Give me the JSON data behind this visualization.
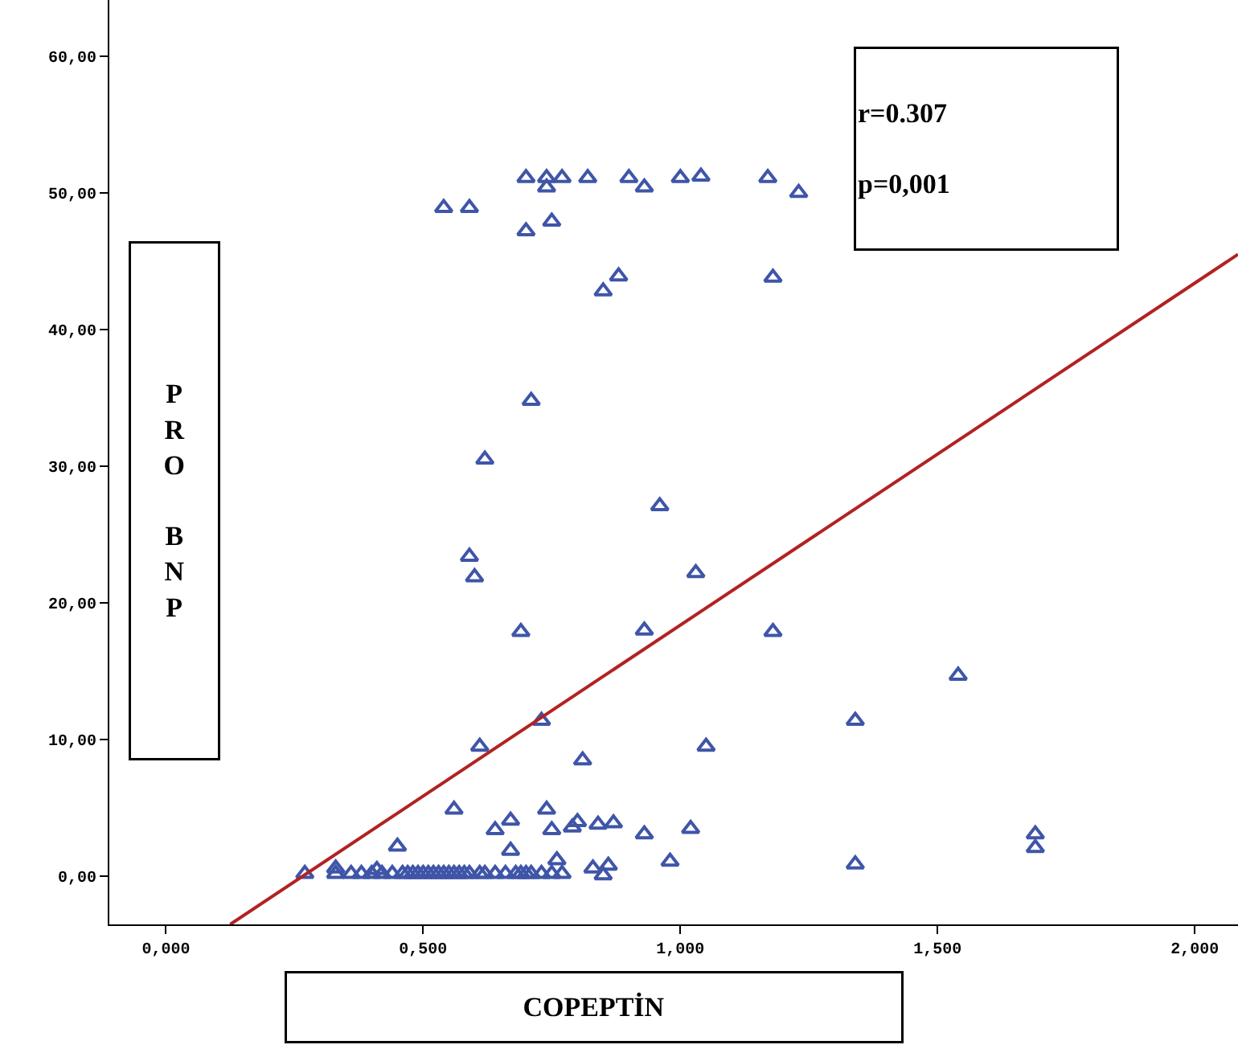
{
  "chart_data": {
    "type": "scatter",
    "xlabel": "COPEPTİN",
    "ylabel": "PRO BNP",
    "annotations": [
      "r=0.307",
      "p=0,001"
    ],
    "xlim": [
      -0.11,
      2.084
    ],
    "ylim": [
      -3.5,
      64.1
    ],
    "xticks": [
      {
        "value": 0,
        "label": "0,000"
      },
      {
        "value": 0.5,
        "label": "0,500"
      },
      {
        "value": 1,
        "label": "1,000"
      },
      {
        "value": 1.5,
        "label": "1,500"
      },
      {
        "value": 2,
        "label": "2,000"
      }
    ],
    "yticks": [
      {
        "value": 0,
        "label": "0,00"
      },
      {
        "value": 10,
        "label": "10,00"
      },
      {
        "value": 20,
        "label": "20,00"
      },
      {
        "value": 30,
        "label": "30,00"
      },
      {
        "value": 40,
        "label": "40,00"
      },
      {
        "value": 50,
        "label": "50,00"
      },
      {
        "value": 60,
        "label": "60,00"
      }
    ],
    "series": [
      {
        "marker": "triangle",
        "color": "#3f55a8",
        "x": [
          0.54,
          0.59,
          0.7,
          0.74,
          0.77,
          0.82,
          0.9,
          1.0,
          1.04,
          1.17,
          1.23,
          0.74,
          0.93,
          0.7,
          0.75,
          0.85,
          0.88,
          1.18,
          0.71,
          0.62,
          0.96,
          0.59,
          0.6,
          1.03,
          0.69,
          0.93,
          1.18,
          1.54,
          0.73,
          1.34,
          0.61,
          1.05,
          0.81,
          0.45,
          0.56,
          0.74,
          0.64,
          0.67,
          0.75,
          0.84,
          0.87,
          0.79,
          0.8,
          0.93,
          1.02,
          0.67,
          0.76,
          0.83,
          0.86,
          0.98,
          1.34,
          1.69,
          1.69,
          0.27,
          0.33,
          0.36,
          0.38,
          0.4,
          0.42,
          0.44,
          0.46,
          0.47,
          0.48,
          0.49,
          0.5,
          0.51,
          0.52,
          0.53,
          0.54,
          0.55,
          0.56,
          0.57,
          0.58,
          0.59,
          0.61,
          0.62,
          0.64,
          0.66,
          0.68,
          0.69,
          0.7,
          0.71,
          0.73,
          0.75,
          0.77,
          0.33,
          0.41,
          0.85
        ],
        "values": [
          48.9,
          48.9,
          51.1,
          51.1,
          51.1,
          51.1,
          51.1,
          51.1,
          51.2,
          51.1,
          50.0,
          50.4,
          50.4,
          47.2,
          47.9,
          42.8,
          43.9,
          43.8,
          34.8,
          30.5,
          27.1,
          23.4,
          21.9,
          22.2,
          17.9,
          18.0,
          17.9,
          14.7,
          11.4,
          11.4,
          9.5,
          9.5,
          8.5,
          2.2,
          4.9,
          4.9,
          3.4,
          4.1,
          3.4,
          3.8,
          3.9,
          3.6,
          4.0,
          3.1,
          3.5,
          1.9,
          1.2,
          0.6,
          0.8,
          1.1,
          0.9,
          3.1,
          2.1,
          0.2,
          0.2,
          0.2,
          0.2,
          0.2,
          0.2,
          0.2,
          0.2,
          0.2,
          0.2,
          0.2,
          0.2,
          0.2,
          0.2,
          0.2,
          0.2,
          0.2,
          0.2,
          0.2,
          0.2,
          0.2,
          0.2,
          0.2,
          0.2,
          0.2,
          0.2,
          0.2,
          0.2,
          0.2,
          0.2,
          0.2,
          0.2,
          0.6,
          0.5,
          0.1
        ]
      },
      {
        "type": "line",
        "marker": "none",
        "color": "#b22222",
        "x": [
          0.125,
          2.084
        ],
        "values": [
          -3.5,
          45.5
        ]
      }
    ]
  }
}
